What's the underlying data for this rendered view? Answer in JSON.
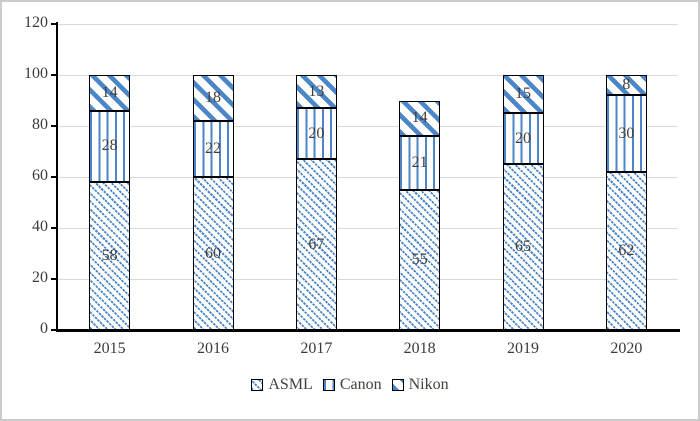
{
  "chart_data": {
    "type": "bar",
    "stacked": true,
    "title": "",
    "xlabel": "",
    "ylabel": "",
    "categories": [
      "2015",
      "2016",
      "2017",
      "2018",
      "2019",
      "2020"
    ],
    "series": [
      {
        "name": "ASML",
        "pattern": "asml",
        "values": [
          58,
          60,
          67,
          55,
          65,
          62
        ]
      },
      {
        "name": "Canon",
        "pattern": "canon",
        "values": [
          28,
          22,
          20,
          21,
          20,
          30
        ]
      },
      {
        "name": "Nikon",
        "pattern": "nikon",
        "values": [
          14,
          18,
          13,
          14,
          15,
          8
        ]
      }
    ],
    "ylim": [
      0,
      120
    ],
    "yticks": [
      0,
      20,
      40,
      60,
      80,
      100,
      120
    ],
    "grid": true,
    "legend_position": "bottom",
    "colors": {
      "pattern_blue": "#4a86c8",
      "axis": "#000000",
      "gridline": "#d9d9d9",
      "value_label_text": "#44403b",
      "tick_label_text": "#3b3b3b",
      "frame_border": "#cbcbcb",
      "background": "#ffffff"
    }
  }
}
